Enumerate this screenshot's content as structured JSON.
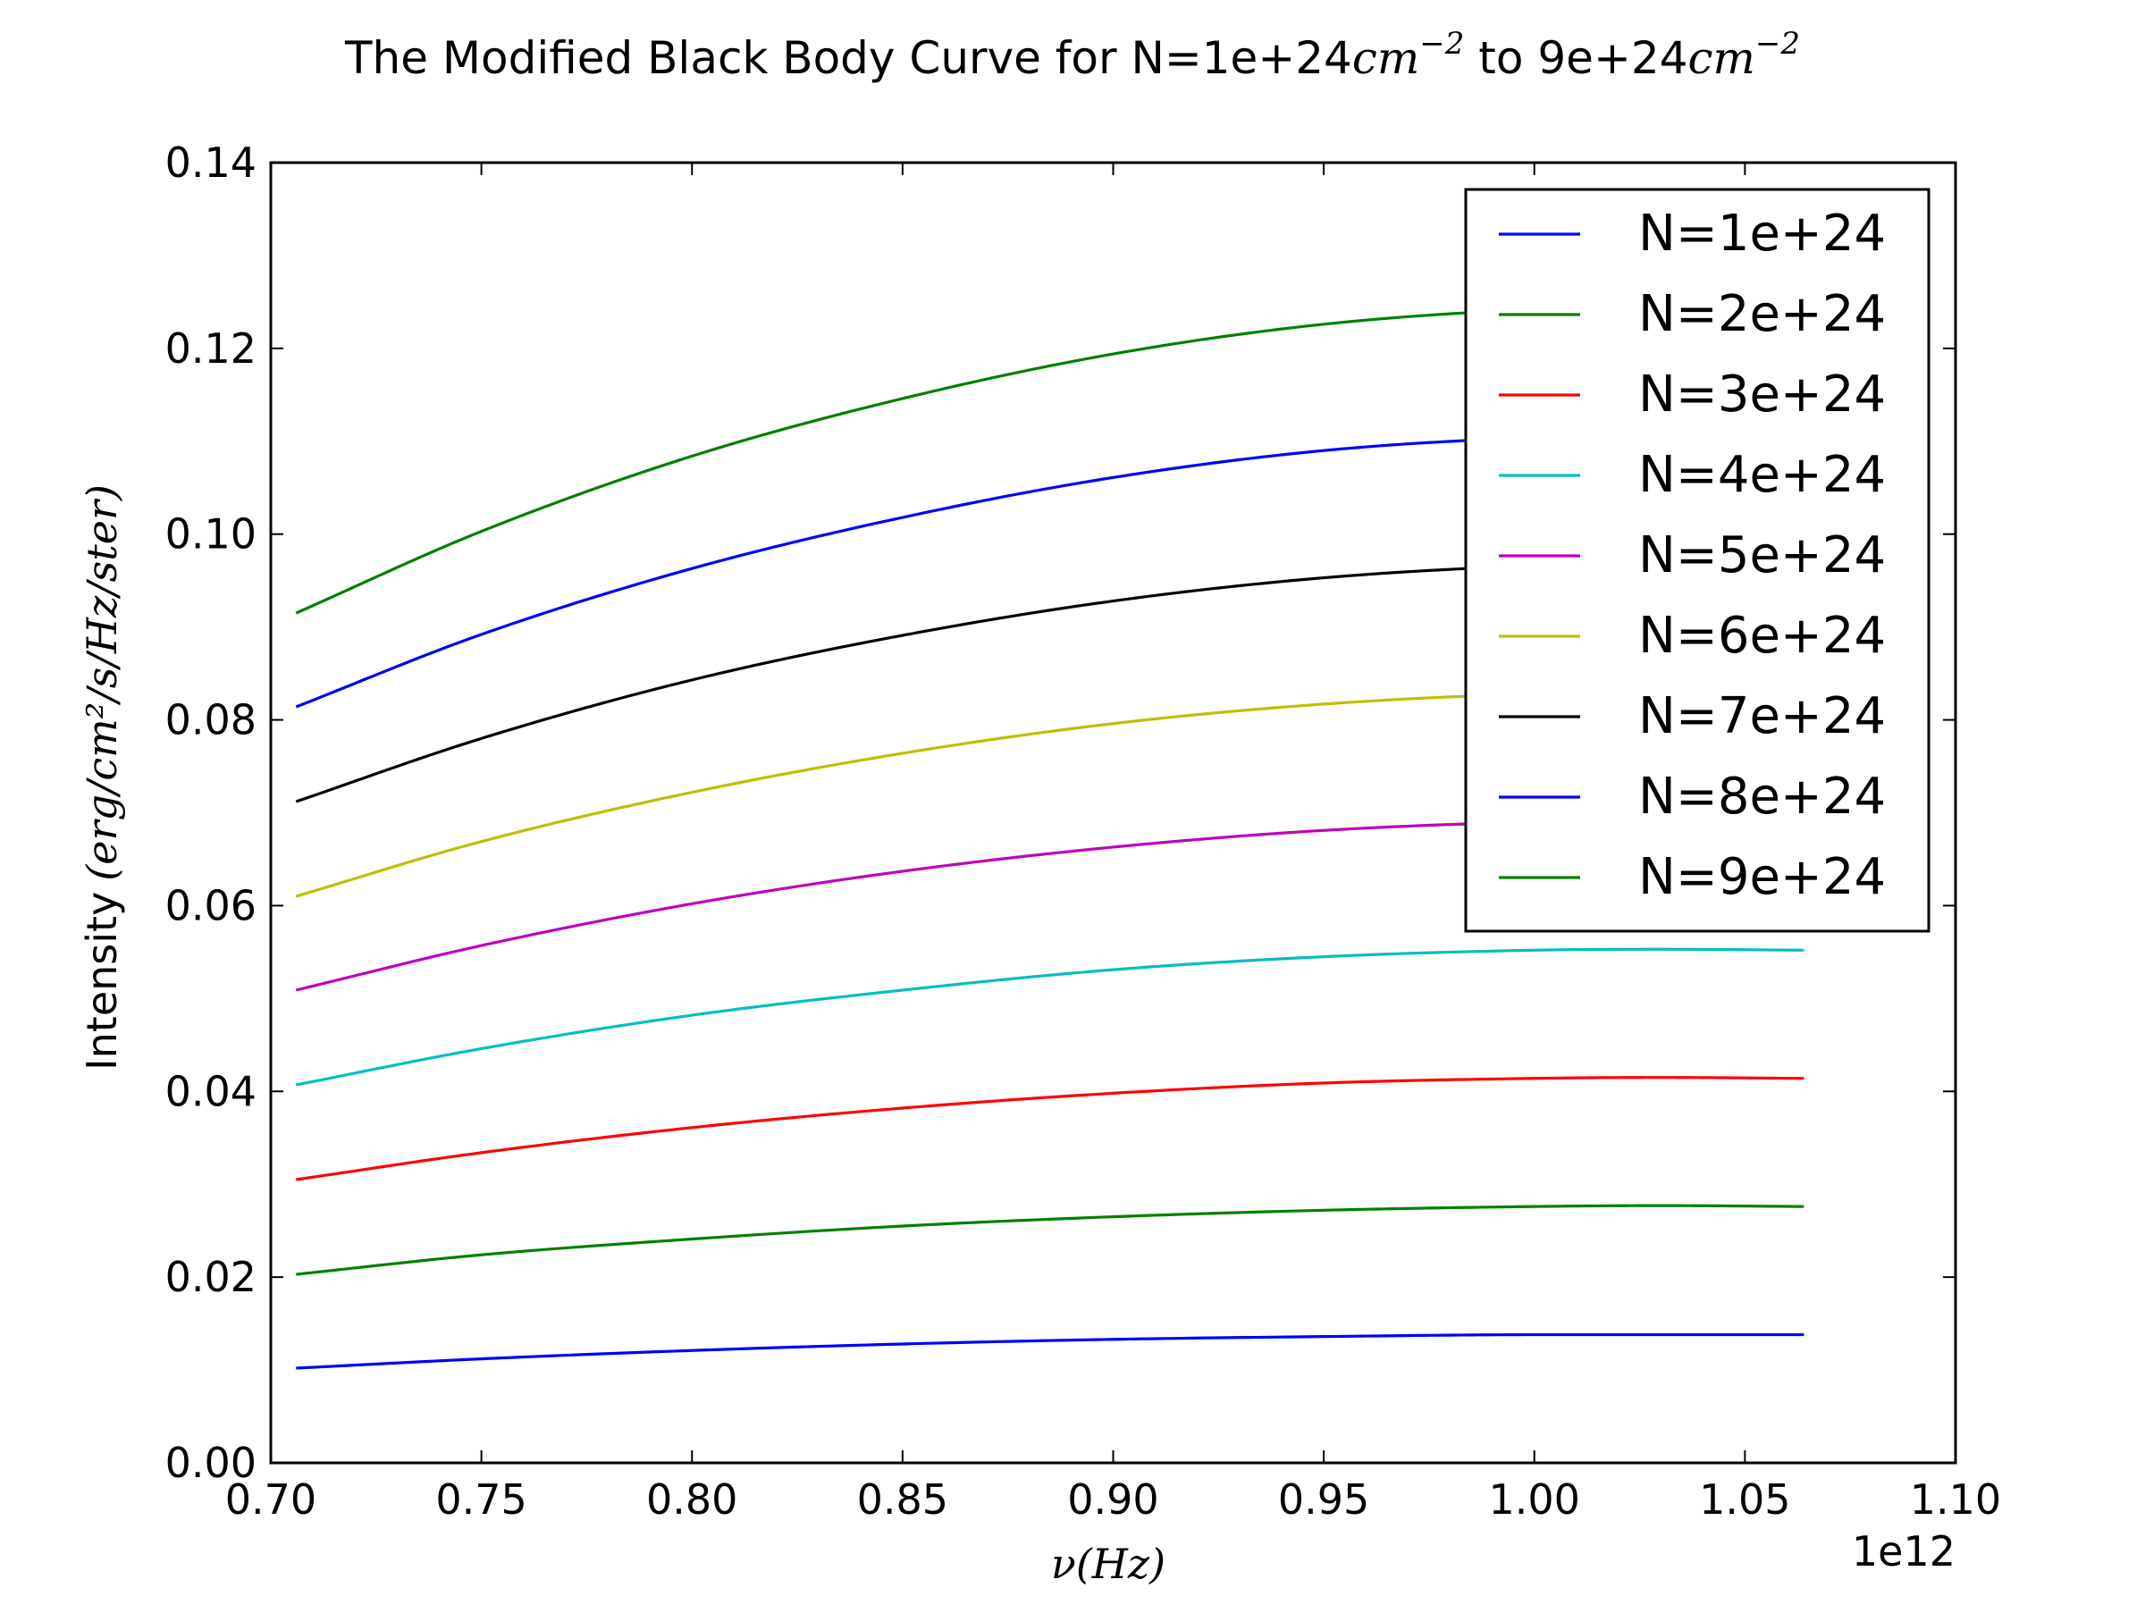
{
  "chart_data": {
    "type": "line",
    "title": "The Modified Black Body Curve for N=1e+24",
    "title_unit_1": "cm",
    "title_exp_1": "−2",
    "title_mid": " to 9e+24",
    "title_unit_2": "cm",
    "title_exp_2": "−2",
    "xlabel": "ν(Hz)",
    "ylabel_text": "Intensity",
    "ylabel_math": "(erg/cm²/s/Hz/ster)",
    "x_offset_text": "1e12",
    "xlim": [
      0.7,
      1.1
    ],
    "ylim": [
      0.0,
      0.14
    ],
    "x_scale_factor": 1000000000000.0,
    "xticks": [
      0.7,
      0.75,
      0.8,
      0.85,
      0.9,
      0.95,
      1.0,
      1.05,
      1.1
    ],
    "xtick_labels": [
      "0.70",
      "0.75",
      "0.80",
      "0.85",
      "0.90",
      "0.95",
      "1.00",
      "1.05",
      "1.10"
    ],
    "yticks": [
      0.0,
      0.02,
      0.04,
      0.06,
      0.08,
      0.1,
      0.12,
      0.14
    ],
    "ytick_labels": [
      "0.00",
      "0.02",
      "0.04",
      "0.06",
      "0.08",
      "0.10",
      "0.12",
      "0.14"
    ],
    "grid": false,
    "legend_position": "top-right",
    "x": [
      0.706,
      0.75,
      0.8,
      0.85,
      0.9,
      0.95,
      1.0,
      1.03,
      1.064
    ],
    "series": [
      {
        "name": "N=1e+24",
        "color": "#0000ff",
        "values": [
          0.0102,
          0.0112,
          0.0121,
          0.0128,
          0.0133,
          0.0136,
          0.0138,
          0.0138,
          0.0138
        ]
      },
      {
        "name": "N=2e+24",
        "color": "#008000",
        "values": [
          0.0203,
          0.0224,
          0.0241,
          0.0255,
          0.0265,
          0.0272,
          0.0276,
          0.0277,
          0.0276
        ]
      },
      {
        "name": "N=3e+24",
        "color": "#ff0000",
        "values": [
          0.0305,
          0.0334,
          0.0361,
          0.0382,
          0.0398,
          0.0409,
          0.0414,
          0.0415,
          0.0414
        ]
      },
      {
        "name": "N=4e+24",
        "color": "#00bfbf",
        "values": [
          0.0407,
          0.0446,
          0.0482,
          0.0509,
          0.0531,
          0.0545,
          0.0552,
          0.0553,
          0.0552
        ]
      },
      {
        "name": "N=5e+24",
        "color": "#bf00bf",
        "values": [
          0.0509,
          0.0557,
          0.0602,
          0.0637,
          0.0663,
          0.0681,
          0.069,
          0.0691,
          0.069
        ]
      },
      {
        "name": "N=6e+24",
        "color": "#bfbf00",
        "values": [
          0.061,
          0.0669,
          0.0722,
          0.0764,
          0.0796,
          0.0817,
          0.0828,
          0.0829,
          0.0828
        ]
      },
      {
        "name": "N=7e+24",
        "color": "#000000",
        "values": [
          0.0712,
          0.078,
          0.0843,
          0.0891,
          0.0928,
          0.0953,
          0.0966,
          0.0968,
          0.0966
        ]
      },
      {
        "name": "N=8e+24",
        "color": "#0000ff",
        "values": [
          0.0814,
          0.0892,
          0.0963,
          0.1018,
          0.1061,
          0.109,
          0.1104,
          0.1106,
          0.1104
        ]
      },
      {
        "name": "N=9e+24",
        "color": "#008000",
        "values": [
          0.0915,
          0.1003,
          0.1084,
          0.1146,
          0.1194,
          0.1226,
          0.1242,
          0.1244,
          0.1242
        ]
      }
    ]
  }
}
